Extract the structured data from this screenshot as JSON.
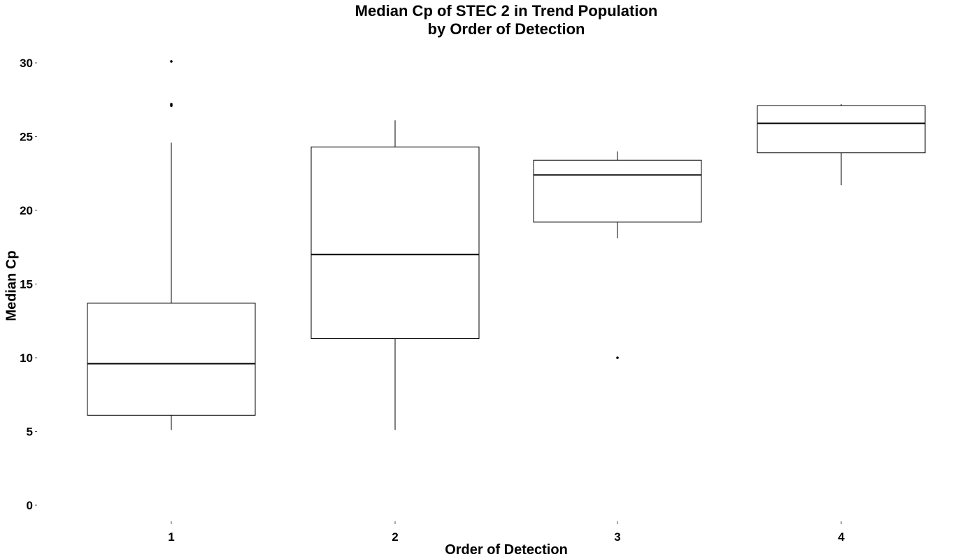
{
  "chart_data": {
    "type": "boxplot",
    "title": [
      "Median Cp of STEC 2 in Trend Population",
      "by Order of Detection"
    ],
    "xlabel": "Order of Detection",
    "ylabel": "Median Cp",
    "ylim": [
      -1,
      31
    ],
    "yticks": [
      0,
      5,
      10,
      15,
      20,
      25,
      30
    ],
    "grid": false,
    "categories": [
      "1",
      "2",
      "3",
      "4"
    ],
    "boxes": [
      {
        "category": "1",
        "whisker_low": 5.1,
        "q1": 6.1,
        "median": 9.6,
        "q3": 13.7,
        "whisker_high": 24.6,
        "outliers": [
          27.1,
          27.2,
          30.1
        ]
      },
      {
        "category": "2",
        "whisker_low": 5.1,
        "q1": 11.3,
        "median": 17.0,
        "q3": 24.3,
        "whisker_high": 26.1,
        "outliers": []
      },
      {
        "category": "3",
        "whisker_low": 18.1,
        "q1": 19.2,
        "median": 22.4,
        "q3": 23.4,
        "whisker_high": 24.0,
        "outliers": [
          10.0
        ]
      },
      {
        "category": "4",
        "whisker_low": 21.7,
        "q1": 23.9,
        "median": 25.9,
        "q3": 27.1,
        "whisker_high": 27.2,
        "outliers": []
      }
    ]
  }
}
